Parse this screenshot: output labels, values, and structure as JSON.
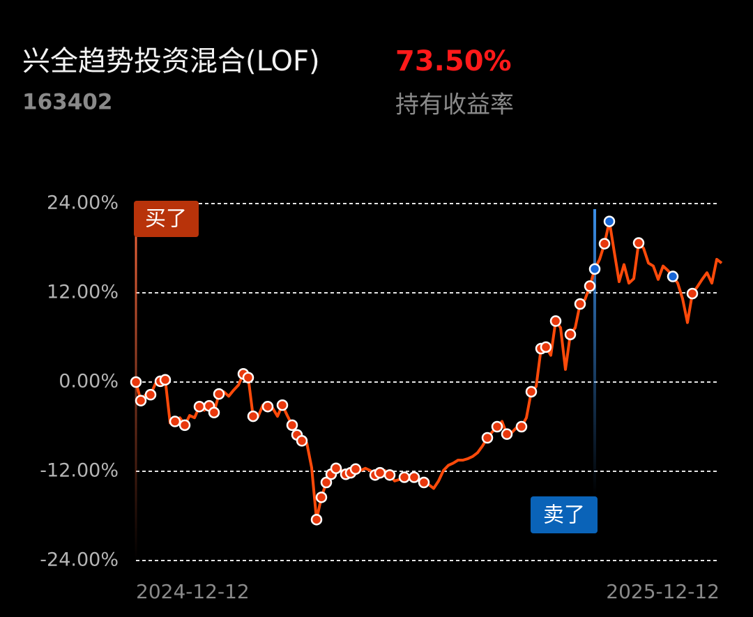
{
  "header": {
    "title": "兴全趋势投资混合(LOF)",
    "code": "163402",
    "return": "73.50%",
    "return_label": "持有收益率"
  },
  "chart_data": {
    "type": "line",
    "color": "#ff4a0a",
    "ylim": [
      -24,
      24
    ],
    "yticks": [
      {
        "value": 24,
        "label": "24.00%"
      },
      {
        "value": 12,
        "label": "12.00%"
      },
      {
        "value": 0,
        "label": "0.00%"
      },
      {
        "value": -12,
        "label": "-12.00%"
      },
      {
        "value": -24,
        "label": "-24.00%"
      }
    ],
    "grid": true,
    "categories": [
      "2024-12-12",
      null,
      null,
      null,
      null,
      null,
      null,
      null,
      null,
      null,
      null,
      null,
      null,
      null,
      null,
      null,
      null,
      null,
      null,
      null,
      null,
      null,
      null,
      null,
      null,
      null,
      null,
      null,
      null,
      null,
      null,
      null,
      null,
      null,
      null,
      null,
      null,
      null,
      null,
      null,
      null,
      null,
      null,
      null,
      null,
      null,
      null,
      null,
      null,
      null,
      null,
      null,
      null,
      null,
      null,
      null,
      null,
      null,
      null,
      null,
      null,
      null,
      null,
      null,
      null,
      null,
      null,
      null,
      null,
      null,
      null,
      null,
      null,
      null,
      null,
      null,
      null,
      null,
      null,
      null,
      null,
      null,
      null,
      null,
      null,
      null,
      null,
      null,
      null,
      null,
      null,
      null,
      null,
      null,
      null,
      null,
      null,
      null,
      null,
      null,
      null,
      null,
      null,
      null,
      null,
      null,
      null,
      null,
      null,
      null,
      null,
      null,
      null,
      null,
      null,
      null,
      null,
      null,
      null,
      null,
      "2025-12-12"
    ],
    "values": [
      0.0,
      -2.5,
      -1.7,
      -1.7,
      -0.2,
      0.1,
      0.3,
      -5.5,
      -5.3,
      -4.8,
      -5.8,
      -4.5,
      -4.8,
      -3.3,
      -3.8,
      -3.2,
      -4.1,
      -1.6,
      -1.3,
      -1.9,
      -1.1,
      -0.4,
      1.1,
      0.6,
      -4.6,
      -4.7,
      -3.1,
      -3.3,
      -3.5,
      -4.6,
      -3.1,
      -4.5,
      -5.8,
      -7.1,
      -7.9,
      -8.2,
      -11.5,
      -18.5,
      -15.5,
      -13.5,
      -12.4,
      -11.6,
      -11.8,
      -12.4,
      -12.2,
      -11.7,
      -11.9,
      -11.6,
      -11.9,
      -12.5,
      -12.2,
      -11.9,
      -12.5,
      -13.3,
      -13.1,
      -12.8,
      -13.1,
      -12.8,
      -13.3,
      -13.5,
      -13.8,
      -14.3,
      -13.3,
      -11.9,
      -11.2,
      -10.9,
      -10.5,
      -10.5,
      -10.3,
      -10.0,
      -9.5,
      -8.6,
      -7.5,
      -6.7,
      -6.0,
      -5.3,
      -7.0,
      -6.8,
      -6.1,
      -6.0,
      -4.8,
      -1.3,
      -0.6,
      4.5,
      4.7,
      3.6,
      8.2,
      7.3,
      1.7,
      6.4,
      7.3,
      10.5,
      11.1,
      12.9,
      15.2,
      16.5,
      18.6,
      21.6,
      17.5,
      13.5,
      15.8,
      13.3,
      13.9,
      18.7,
      18.0,
      16.0,
      15.6,
      13.8,
      15.6,
      15.0,
      14.2,
      13.3,
      11.2,
      8.0,
      11.9,
      12.8,
      13.8,
      14.7,
      13.3,
      16.5,
      16.0
    ],
    "buy_points": {
      "color": "#e8380d",
      "values": [
        0.0,
        -2.5,
        null,
        -1.7,
        null,
        0.1,
        0.3,
        null,
        -5.3,
        null,
        -5.8,
        null,
        null,
        -3.3,
        null,
        -3.2,
        -4.1,
        -1.6,
        null,
        null,
        null,
        null,
        1.1,
        0.6,
        -4.6,
        null,
        null,
        -3.3,
        null,
        null,
        -3.1,
        null,
        -5.8,
        -7.1,
        -7.9,
        null,
        null,
        -18.5,
        -15.5,
        -13.5,
        -12.4,
        -11.6,
        null,
        -12.4,
        -12.2,
        -11.7,
        null,
        null,
        null,
        -12.5,
        -12.2,
        null,
        -12.5,
        null,
        null,
        -12.8,
        null,
        -12.8,
        null,
        -13.5,
        null,
        null,
        null,
        null,
        null,
        null,
        null,
        null,
        null,
        null,
        null,
        null,
        -7.5,
        null,
        -6.0,
        null,
        -7.0,
        null,
        null,
        -6.0,
        null,
        -1.3,
        null,
        4.5,
        4.7,
        null,
        8.2,
        null,
        null,
        6.4,
        null,
        10.5,
        null,
        12.9,
        null,
        null,
        18.6,
        null,
        null,
        null,
        null,
        null,
        null,
        18.7,
        null,
        null,
        null,
        null,
        null,
        null,
        null,
        null,
        null,
        null,
        11.9,
        null,
        null,
        null,
        null,
        null,
        null
      ]
    },
    "sell_points": {
      "color": "#1766d6",
      "values": [
        null,
        null,
        null,
        null,
        null,
        null,
        null,
        null,
        null,
        null,
        null,
        null,
        null,
        null,
        null,
        null,
        null,
        null,
        null,
        null,
        null,
        null,
        null,
        null,
        null,
        null,
        null,
        null,
        null,
        null,
        null,
        null,
        null,
        null,
        null,
        null,
        null,
        null,
        null,
        null,
        null,
        null,
        null,
        null,
        null,
        null,
        null,
        null,
        null,
        null,
        null,
        null,
        null,
        null,
        null,
        null,
        null,
        null,
        null,
        null,
        null,
        null,
        null,
        null,
        null,
        null,
        null,
        null,
        null,
        null,
        null,
        null,
        null,
        null,
        null,
        null,
        null,
        null,
        null,
        null,
        null,
        null,
        null,
        null,
        null,
        null,
        null,
        null,
        null,
        null,
        null,
        null,
        null,
        null,
        15.2,
        null,
        null,
        21.6,
        null,
        null,
        null,
        null,
        null,
        null,
        null,
        null,
        null,
        null,
        null,
        null,
        14.2,
        null,
        null,
        null,
        null,
        null,
        null,
        null,
        null,
        null,
        null
      ]
    },
    "buy_label": "买了",
    "buy_label_color": "#b8330a",
    "sell_label": "卖了",
    "sell_label_color": "#0a63b8"
  }
}
